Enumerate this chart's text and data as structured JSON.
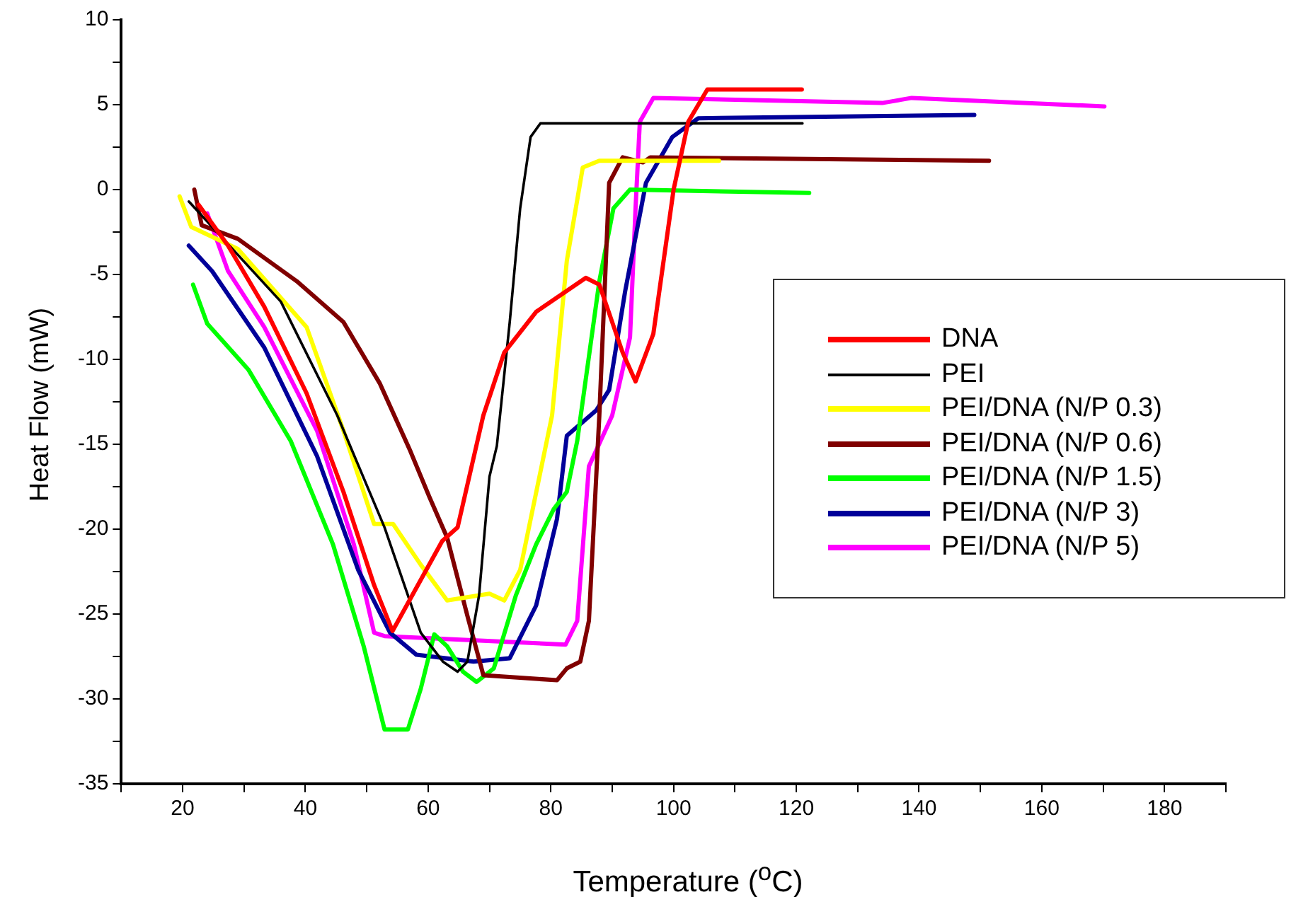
{
  "chart_data": {
    "type": "line",
    "xlabel": "Temperature ($^{o}$C)",
    "ylabel": "Heat Flow (mW)",
    "xlim": [
      10,
      190
    ],
    "ylim": [
      -35,
      10
    ],
    "xticks": [
      {
        "value": 10,
        "label": null
      },
      20,
      {
        "value": 30,
        "label": null
      },
      40,
      {
        "value": 50,
        "label": null
      },
      60,
      {
        "value": 70,
        "label": null
      },
      80,
      {
        "value": 90,
        "label": null
      },
      100,
      {
        "value": 110,
        "label": null
      },
      120,
      {
        "value": 130,
        "label": null
      },
      140,
      {
        "value": 150,
        "label": null
      },
      160,
      {
        "value": 170,
        "label": null
      },
      180,
      {
        "value": 190,
        "label": null
      }
    ],
    "yticks": [
      -35,
      {
        "value": -32.5,
        "label": null
      },
      -30,
      {
        "value": -27.5,
        "label": null
      },
      -25,
      {
        "value": -22.5,
        "label": null
      },
      -20,
      {
        "value": -17.5,
        "label": null
      },
      -15,
      {
        "value": -12.5,
        "label": null
      },
      -10,
      {
        "value": -7.5,
        "label": null
      },
      -5,
      {
        "value": -2.5,
        "label": null
      },
      0,
      {
        "value": 2.5,
        "label": null
      },
      5,
      {
        "value": 7.5,
        "label": null
      },
      10
    ],
    "grid": false,
    "legend": "right",
    "marker": "none",
    "line_style": "solid",
    "series": [
      {
        "name": "DNA",
        "color": "#ff0000",
        "x": [
          22.6,
          27.4,
          33.3,
          40.2,
          46.2,
          51.2,
          54.2,
          62.3,
          64.8,
          69.0,
          72.4,
          77.6,
          85.7,
          87.9,
          91.7,
          93.8,
          96.7,
          100.0,
          102.4,
          105.5,
          120.9
        ],
        "values": [
          -0.9,
          -3.3,
          -6.9,
          -12.0,
          -17.8,
          -23.3,
          -26.0,
          -20.7,
          -19.9,
          -13.3,
          -9.6,
          -7.2,
          -5.2,
          -5.6,
          -9.6,
          -11.3,
          -8.5,
          0.0,
          4.0,
          5.9,
          5.9
        ]
      },
      {
        "name": "PEI",
        "color": "#000000",
        "x": [
          21.0,
          36.0,
          45.2,
          52.9,
          58.8,
          62.4,
          64.8,
          66.4,
          68.3,
          70.0,
          71.2,
          73.3,
          75.0,
          76.7,
          78.3,
          121.0
        ],
        "values": [
          -0.7,
          -6.6,
          -13.3,
          -19.9,
          -26.1,
          -27.8,
          -28.4,
          -27.8,
          -23.9,
          -16.9,
          -15.1,
          -7.8,
          -1.1,
          3.1,
          3.9,
          3.9
        ]
      },
      {
        "name": "PEI/DNA (N/P 0.3)",
        "color": "#ffff00",
        "x": [
          19.5,
          21.4,
          29.0,
          40.2,
          46.2,
          51.2,
          54.3,
          58.8,
          63.1,
          70.0,
          72.4,
          75.0,
          80.2,
          82.6,
          85.2,
          87.9,
          107.4
        ],
        "values": [
          -0.4,
          -2.2,
          -3.5,
          -8.1,
          -14.2,
          -19.7,
          -19.7,
          -22.1,
          -24.2,
          -23.8,
          -24.2,
          -22.4,
          -13.3,
          -4.2,
          1.3,
          1.7,
          1.7
        ]
      },
      {
        "name": "PEI/DNA (N/P 0.6)",
        "color": "#800000",
        "x": [
          21.9,
          23.1,
          29.0,
          38.6,
          46.2,
          52.1,
          57.1,
          60.2,
          63.1,
          66.4,
          69.0,
          81.0,
          82.6,
          84.8,
          86.2,
          87.9,
          89.5,
          91.7,
          95.0,
          96.2,
          151.4
        ],
        "values": [
          0.0,
          -2.1,
          -2.9,
          -5.4,
          -7.8,
          -11.4,
          -15.4,
          -18.1,
          -20.5,
          -25.1,
          -28.6,
          -28.9,
          -28.2,
          -27.8,
          -25.4,
          -13.3,
          0.4,
          1.9,
          1.6,
          1.9,
          1.7
        ]
      },
      {
        "name": "PEI/DNA (N/P 1.5)",
        "color": "#00ff00",
        "x": [
          21.7,
          24.0,
          30.7,
          37.6,
          44.5,
          49.5,
          52.9,
          56.7,
          58.8,
          61.0,
          63.1,
          65.7,
          67.9,
          70.7,
          74.3,
          77.6,
          80.5,
          82.6,
          84.3,
          87.9,
          90.2,
          92.9,
          122.1
        ],
        "values": [
          -5.6,
          -7.9,
          -10.6,
          -14.8,
          -20.9,
          -26.9,
          -31.8,
          -31.8,
          -29.4,
          -26.2,
          -26.9,
          -28.4,
          -29.0,
          -28.2,
          -23.9,
          -20.9,
          -18.8,
          -17.8,
          -14.8,
          -5.4,
          -1.1,
          0.0,
          -0.2
        ]
      },
      {
        "name": "PEI/DNA (N/P 3)",
        "color": "#000099",
        "x": [
          21.0,
          24.8,
          33.3,
          41.9,
          48.6,
          53.8,
          58.1,
          67.4,
          73.3,
          77.6,
          81.0,
          82.6,
          87.4,
          89.5,
          92.1,
          95.5,
          99.8,
          104.0,
          149.0
        ],
        "values": [
          -3.3,
          -4.8,
          -9.3,
          -15.7,
          -22.4,
          -26.1,
          -27.4,
          -27.8,
          -27.6,
          -24.5,
          -19.4,
          -14.5,
          -13.0,
          -11.8,
          -6.0,
          0.4,
          3.1,
          4.2,
          4.4
        ]
      },
      {
        "name": "PEI/DNA (N/P 5)",
        "color": "#ff00ff",
        "x": [
          24.0,
          27.4,
          33.3,
          41.9,
          47.9,
          51.2,
          52.9,
          82.4,
          84.3,
          86.2,
          90.0,
          92.9,
          93.8,
          94.5,
          96.7,
          134.0,
          138.8,
          170.2
        ],
        "values": [
          -1.4,
          -4.8,
          -8.1,
          -14.2,
          -20.9,
          -26.1,
          -26.3,
          -26.8,
          -25.4,
          -16.3,
          -13.3,
          -8.7,
          -1.1,
          4.0,
          5.4,
          5.1,
          5.4,
          4.9
        ]
      }
    ]
  }
}
